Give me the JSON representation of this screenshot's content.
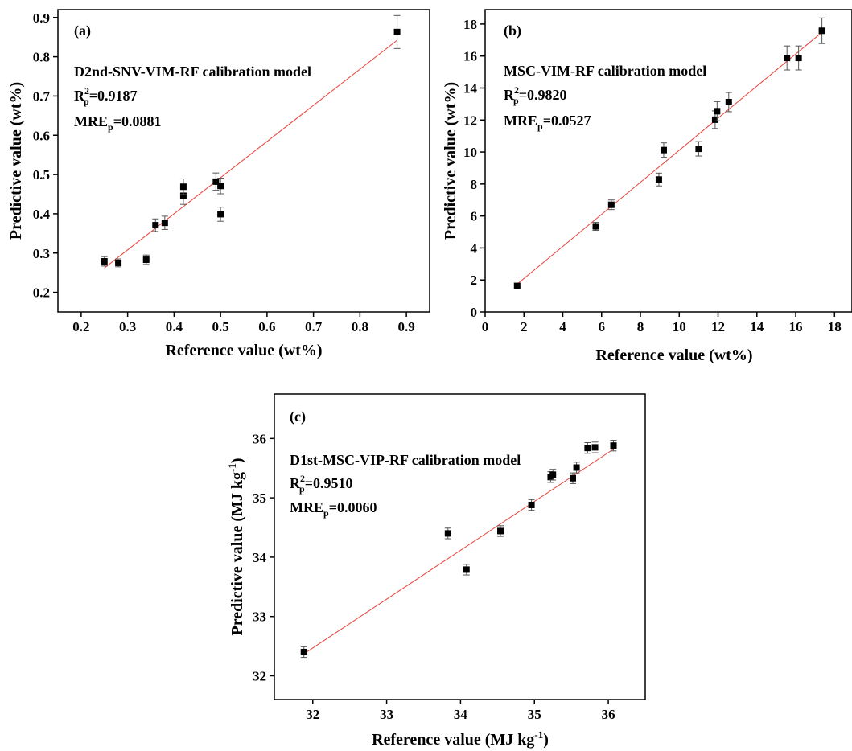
{
  "chart_data": [
    {
      "type": "scatter",
      "panel_label": "(a)",
      "xlabel": "Reference value (wt%)",
      "ylabel": "Predictive value (wt%)",
      "annotations": {
        "model": "D2nd-SNV-VIM-RF calibration model",
        "r2_prefix": "R",
        "r2_sup": "2",
        "r2_sub": "p",
        "r2_value": "=0.9187",
        "mre_prefix": "MRE",
        "mre_sub": "p",
        "mre_value": "=0.0881"
      },
      "xlim": [
        0.15,
        0.95
      ],
      "ylim": [
        0.15,
        0.92
      ],
      "xticks": [
        0.2,
        0.3,
        0.4,
        0.5,
        0.6,
        0.7,
        0.8,
        0.9
      ],
      "xtick_labels": [
        "0.2",
        "0.3",
        "0.4",
        "0.5",
        "0.6",
        "0.7",
        "0.8",
        "0.9"
      ],
      "yticks": [
        0.2,
        0.3,
        0.4,
        0.5,
        0.6,
        0.7,
        0.8,
        0.9
      ],
      "ytick_labels": [
        "0.2",
        "0.3",
        "0.4",
        "0.5",
        "0.6",
        "0.7",
        "0.8",
        "0.9"
      ],
      "points": [
        {
          "x": 0.25,
          "y": 0.279,
          "err": 0.012
        },
        {
          "x": 0.28,
          "y": 0.275,
          "err": 0.01
        },
        {
          "x": 0.34,
          "y": 0.283,
          "err": 0.012
        },
        {
          "x": 0.36,
          "y": 0.371,
          "err": 0.016
        },
        {
          "x": 0.38,
          "y": 0.377,
          "err": 0.017
        },
        {
          "x": 0.42,
          "y": 0.446,
          "err": 0.022
        },
        {
          "x": 0.42,
          "y": 0.469,
          "err": 0.02
        },
        {
          "x": 0.49,
          "y": 0.482,
          "err": 0.022
        },
        {
          "x": 0.5,
          "y": 0.471,
          "err": 0.02
        },
        {
          "x": 0.5,
          "y": 0.399,
          "err": 0.018
        },
        {
          "x": 0.88,
          "y": 0.863,
          "err": 0.042
        }
      ],
      "fit_line": {
        "x": [
          0.25,
          0.88
        ],
        "y": [
          0.262,
          0.842
        ]
      },
      "colors": {
        "marker": "#000000",
        "fit_line": "#e8413a",
        "error_bar": "#555555"
      }
    },
    {
      "type": "scatter",
      "panel_label": "(b)",
      "xlabel": "Reference value (wt%)",
      "ylabel": "Predictive value (wt%)",
      "annotations": {
        "model": "MSC-VIM-RF calibration model",
        "r2_prefix": "R",
        "r2_sup": "2",
        "r2_sub": "p",
        "r2_value": "=0.9820",
        "mre_prefix": "MRE",
        "mre_sub": "p",
        "mre_value": "=0.0527"
      },
      "xlim": [
        0,
        18.9
      ],
      "ylim": [
        0,
        18.9
      ],
      "xticks": [
        0,
        2,
        4,
        6,
        8,
        10,
        12,
        14,
        16,
        18
      ],
      "xtick_labels": [
        "0",
        "2",
        "4",
        "6",
        "8",
        "10",
        "12",
        "14",
        "16",
        "18"
      ],
      "yticks": [
        0,
        2,
        4,
        6,
        8,
        10,
        12,
        14,
        16,
        18
      ],
      "ytick_labels": [
        "0",
        "2",
        "4",
        "6",
        "8",
        "10",
        "12",
        "14",
        "16",
        "18"
      ],
      "points": [
        {
          "x": 1.65,
          "y": 1.63,
          "err": 0.08
        },
        {
          "x": 5.7,
          "y": 5.35,
          "err": 0.25
        },
        {
          "x": 6.5,
          "y": 6.7,
          "err": 0.3
        },
        {
          "x": 8.95,
          "y": 8.28,
          "err": 0.4
        },
        {
          "x": 9.2,
          "y": 10.12,
          "err": 0.45
        },
        {
          "x": 11.0,
          "y": 10.2,
          "err": 0.45
        },
        {
          "x": 11.85,
          "y": 12.02,
          "err": 0.55
        },
        {
          "x": 11.95,
          "y": 12.55,
          "err": 0.6
        },
        {
          "x": 12.55,
          "y": 13.12,
          "err": 0.6
        },
        {
          "x": 15.55,
          "y": 15.88,
          "err": 0.75
        },
        {
          "x": 16.15,
          "y": 15.88,
          "err": 0.75
        },
        {
          "x": 17.35,
          "y": 17.58,
          "err": 0.8
        }
      ],
      "fit_line": {
        "x": [
          1.65,
          17.35
        ],
        "y": [
          1.74,
          17.48
        ]
      },
      "colors": {
        "marker": "#000000",
        "fit_line": "#e8413a",
        "error_bar": "#555555"
      }
    },
    {
      "type": "scatter",
      "panel_label": "(c)",
      "xlabel_prefix": "Reference value (MJ kg",
      "xlabel_sup": "-1",
      "xlabel_suffix": ")",
      "ylabel_prefix": "Predictive value (MJ kg",
      "ylabel_sup": "-1",
      "ylabel_suffix": ")",
      "annotations": {
        "model": "D1st-MSC-VIP-RF calibration model",
        "r2_prefix": "R",
        "r2_sup": "2",
        "r2_sub": "p",
        "r2_value": "=0.9510",
        "mre_prefix": "MRE",
        "mre_sub": "p",
        "mre_value": "=0.0060"
      },
      "xlim": [
        31.48,
        36.5
      ],
      "ylim": [
        31.6,
        36.75
      ],
      "xticks": [
        32,
        33,
        34,
        35,
        36
      ],
      "xtick_labels": [
        "32",
        "33",
        "34",
        "35",
        "36"
      ],
      "yticks": [
        32,
        33,
        34,
        35,
        36
      ],
      "ytick_labels": [
        "32",
        "33",
        "34",
        "35",
        "36"
      ],
      "points": [
        {
          "x": 31.88,
          "y": 32.4,
          "err": 0.09
        },
        {
          "x": 33.83,
          "y": 34.4,
          "err": 0.09
        },
        {
          "x": 34.08,
          "y": 33.79,
          "err": 0.09
        },
        {
          "x": 34.54,
          "y": 34.44,
          "err": 0.09
        },
        {
          "x": 34.96,
          "y": 34.88,
          "err": 0.09
        },
        {
          "x": 35.22,
          "y": 35.35,
          "err": 0.09
        },
        {
          "x": 35.25,
          "y": 35.39,
          "err": 0.09
        },
        {
          "x": 35.52,
          "y": 35.33,
          "err": 0.09
        },
        {
          "x": 35.57,
          "y": 35.51,
          "err": 0.09
        },
        {
          "x": 35.72,
          "y": 35.84,
          "err": 0.09
        },
        {
          "x": 35.82,
          "y": 35.85,
          "err": 0.09
        },
        {
          "x": 36.07,
          "y": 35.88,
          "err": 0.09
        }
      ],
      "fit_line": {
        "x": [
          31.88,
          36.07
        ],
        "y": [
          32.37,
          35.82
        ]
      },
      "colors": {
        "marker": "#000000",
        "fit_line": "#e8413a",
        "error_bar": "#555555"
      }
    }
  ]
}
